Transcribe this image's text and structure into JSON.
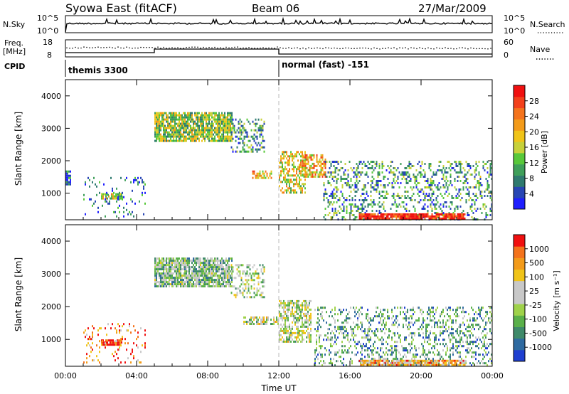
{
  "header": {
    "station": "Syowa East (fitACF)",
    "beam": "Beam 06",
    "date": "27/Mar/2009"
  },
  "strip_nsky": {
    "left_label": "N.Sky",
    "right_label": "N.Search",
    "ticks_left": [
      "10^5",
      "10^0"
    ],
    "ticks_right": [
      "10^5",
      "10^0"
    ]
  },
  "strip_freq": {
    "left_label_1": "Freq.",
    "left_label_2": "[MHz]",
    "right_label": "Nave",
    "ticks_left": [
      "18",
      "8"
    ],
    "ticks_right": [
      "60",
      "0"
    ]
  },
  "cpid": {
    "label": "CPID",
    "segments": [
      {
        "name": "themis 3300",
        "start_hour": 0,
        "end_hour": 12
      },
      {
        "name": "normal (fast) -151",
        "start_hour": 12,
        "end_hour": 24
      }
    ]
  },
  "chart_data": [
    {
      "type": "heatmap",
      "title": "",
      "xlabel": "Time UT",
      "ylabel": "Slant Range [km]",
      "xlim": [
        0,
        24
      ],
      "ylim": [
        180,
        4500
      ],
      "x_ticks": [
        "00:00",
        "04:00",
        "08:00",
        "12:00",
        "16:00",
        "20:00",
        "00:00"
      ],
      "y_ticks": [
        "1000",
        "2000",
        "3000",
        "4000"
      ],
      "colorbar": {
        "label": "Power [dB]",
        "ticks": [
          "4",
          "8",
          "12",
          "16",
          "20",
          "24",
          "28"
        ],
        "colors": [
          "#1f1fff",
          "#2846b4",
          "#2f7a6f",
          "#3f9f5a",
          "#58c83a",
          "#c7d13a",
          "#f0c419",
          "#f39b1a",
          "#f4731c",
          "#f3401b",
          "#f01010"
        ]
      },
      "echo_regions": [
        {
          "t0": 5.0,
          "t1": 9.4,
          "r0": 2600,
          "r1": 3500,
          "density": 0.85,
          "level": 0.45
        },
        {
          "t0": 9.3,
          "t1": 11.2,
          "r0": 2300,
          "r1": 3300,
          "density": 0.35,
          "level": 0.3
        },
        {
          "t0": 2.0,
          "t1": 3.2,
          "r0": 850,
          "r1": 1000,
          "density": 0.9,
          "level": 0.5
        },
        {
          "t0": 1.0,
          "t1": 4.5,
          "r0": 300,
          "r1": 1500,
          "density": 0.12,
          "level": 0.2
        },
        {
          "t0": 0.0,
          "t1": 0.3,
          "r0": 1300,
          "r1": 1700,
          "density": 0.8,
          "level": 0.15
        },
        {
          "t0": 12.0,
          "t1": 13.5,
          "r0": 1000,
          "r1": 2300,
          "density": 0.55,
          "level": 0.55
        },
        {
          "t0": 13.3,
          "t1": 14.6,
          "r0": 1500,
          "r1": 2200,
          "density": 0.55,
          "level": 0.65
        },
        {
          "t0": 14.5,
          "t1": 24.0,
          "r0": 180,
          "r1": 2000,
          "density": 0.28,
          "level": 0.3
        },
        {
          "t0": 16.5,
          "t1": 22.5,
          "r0": 200,
          "r1": 380,
          "density": 0.9,
          "level": 0.95
        },
        {
          "t0": 10.5,
          "t1": 11.6,
          "r0": 1500,
          "r1": 1700,
          "density": 0.7,
          "level": 0.6
        }
      ]
    },
    {
      "type": "heatmap",
      "title": "",
      "xlabel": "Time UT",
      "ylabel": "Slant Range [km]",
      "xlim": [
        0,
        24
      ],
      "ylim": [
        180,
        4500
      ],
      "x_ticks": [
        "00:00",
        "04:00",
        "08:00",
        "12:00",
        "16:00",
        "20:00",
        "00:00"
      ],
      "y_ticks": [
        "1000",
        "2000",
        "3000",
        "4000"
      ],
      "colorbar": {
        "label": "Velocity [m s⁻¹]",
        "ticks": [
          "1000",
          "500",
          "100",
          "25",
          "-25",
          "-100",
          "-500",
          "-1000"
        ],
        "colors": [
          "#1f3fd0",
          "#2f6aa0",
          "#3f8a6a",
          "#5ab04a",
          "#9fd24a",
          "#c8c8c8",
          "#c8c8c8",
          "#f0c419",
          "#f39b1a",
          "#f4731c",
          "#f01010"
        ]
      },
      "echo_regions": [
        {
          "t0": 5.0,
          "t1": 9.4,
          "r0": 2600,
          "r1": 3500,
          "density": 0.85,
          "level": 0.4
        },
        {
          "t0": 9.3,
          "t1": 11.2,
          "r0": 2300,
          "r1": 3300,
          "density": 0.35,
          "level": 0.45
        },
        {
          "t0": 2.0,
          "t1": 3.2,
          "r0": 850,
          "r1": 1000,
          "density": 0.9,
          "level": 0.95
        },
        {
          "t0": 1.0,
          "t1": 4.5,
          "r0": 300,
          "r1": 1500,
          "density": 0.12,
          "level": 0.8
        },
        {
          "t0": 12.0,
          "t1": 13.8,
          "r0": 900,
          "r1": 2200,
          "density": 0.6,
          "level": 0.5
        },
        {
          "t0": 14.0,
          "t1": 24.0,
          "r0": 180,
          "r1": 2000,
          "density": 0.3,
          "level": 0.3
        },
        {
          "t0": 16.5,
          "t1": 22.5,
          "r0": 200,
          "r1": 380,
          "density": 0.85,
          "level": 0.7
        },
        {
          "t0": 10.0,
          "t1": 12.0,
          "r0": 1500,
          "r1": 1700,
          "density": 0.6,
          "level": 0.5
        }
      ]
    }
  ]
}
